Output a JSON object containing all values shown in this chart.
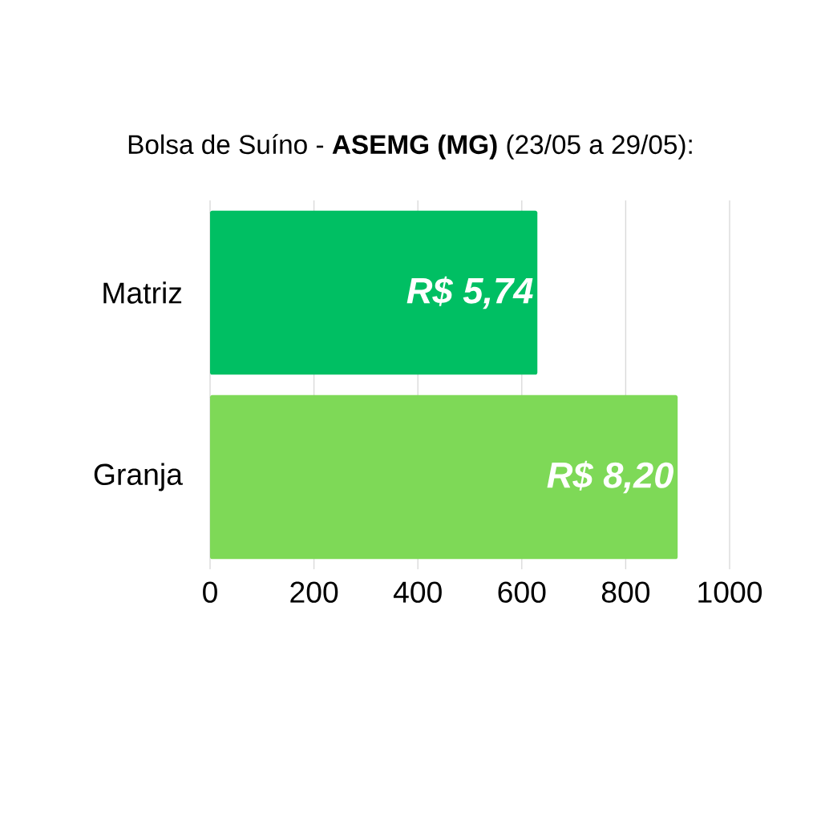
{
  "chart_data": {
    "type": "bar",
    "orientation": "horizontal",
    "title": "Bolsa de Suíno - **ASEMG (MG)** (23/05 a 29/05):",
    "categories": [
      "Matriz",
      "Granja"
    ],
    "values": [
      630,
      900
    ],
    "colors": [
      "#00bf63",
      "#7ed957"
    ],
    "value_labels": [
      "R$ 5,74",
      "R$ 8,20"
    ],
    "xlim": [
      0,
      1000
    ],
    "xticks": [
      0,
      200,
      400,
      600,
      800,
      1000
    ],
    "grid": "x"
  }
}
